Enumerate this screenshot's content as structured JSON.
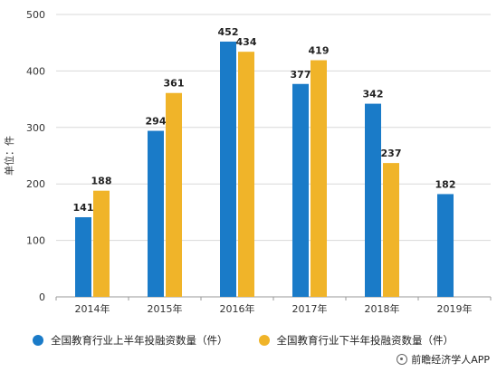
{
  "chart_data": {
    "type": "bar",
    "ylabel": "单位：件",
    "categories": [
      "2014年",
      "2015年",
      "2016年",
      "2017年",
      "2018年",
      "2019年"
    ],
    "series": [
      {
        "name": "全国教育行业上半年投融资数量（件）",
        "color": "#1a7bc8",
        "values": [
          141,
          294,
          452,
          377,
          342,
          182
        ]
      },
      {
        "name": "全国教育行业下半年投融资数量（件）",
        "color": "#f0b429",
        "values": [
          188,
          361,
          434,
          419,
          237,
          null
        ]
      }
    ],
    "ylim": [
      0,
      500
    ],
    "yticks": [
      0,
      100,
      200,
      300,
      400,
      500
    ],
    "grid": true
  },
  "legend": {
    "item1": "全国教育行业上半年投融资数量（件）",
    "item2": "全国教育行业下半年投融资数量（件）"
  },
  "source": "前瞻经济学人APP"
}
